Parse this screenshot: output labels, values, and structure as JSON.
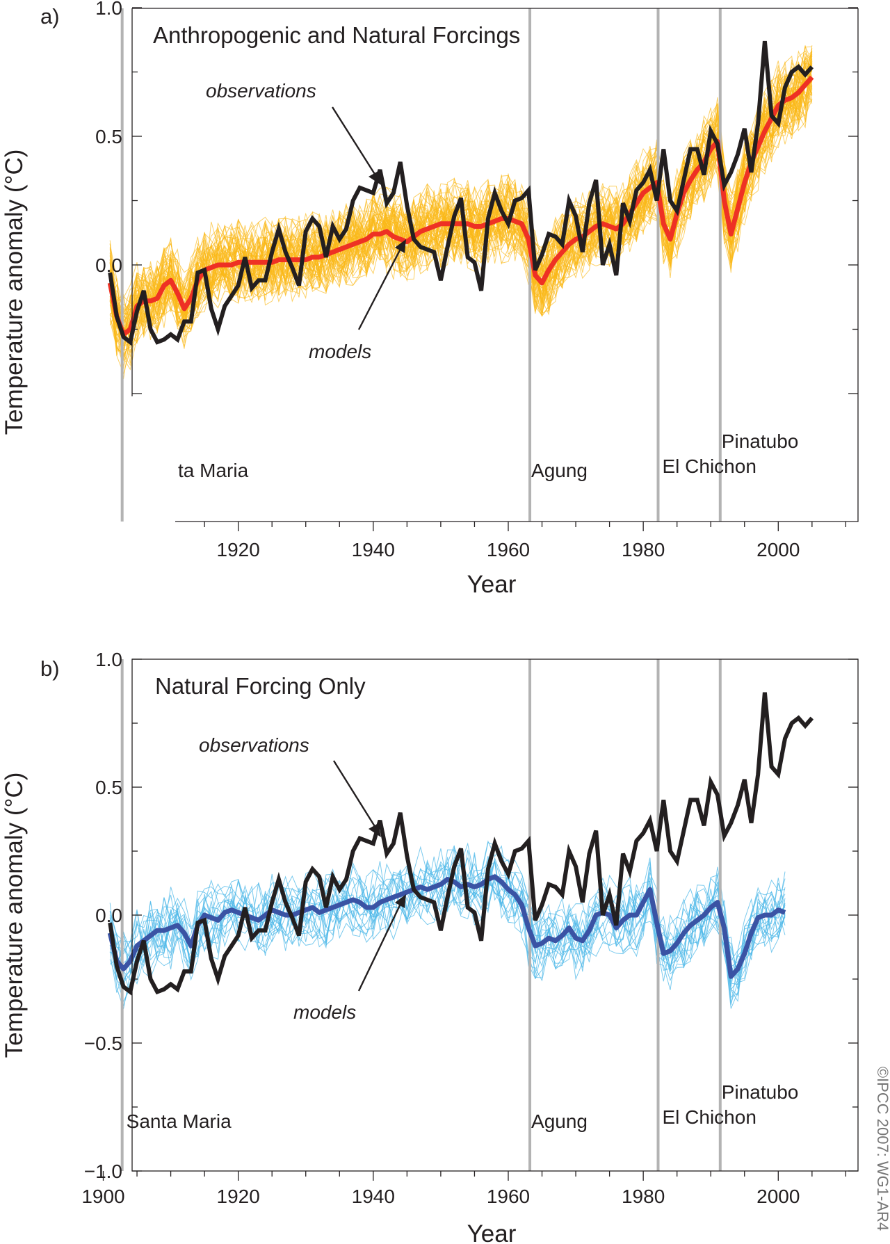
{
  "copyright": "©IPCC 2007: WG1-AR4",
  "colors": {
    "observations": "#231f20",
    "ensemble_a": "#fbb917",
    "mean_a": "#ee3124",
    "ensemble_b": "#4db8e8",
    "mean_b": "#3a53a4",
    "volcano_line": "#b3b3b3"
  },
  "chart_data": [
    {
      "type": "line",
      "panel_letter": "a)",
      "title": "Anthropogenic and Natural Forcings",
      "xlabel": "Year",
      "ylabel": "Temperature anomaly (°C)",
      "xlim": [
        1900,
        2010
      ],
      "ylim": [
        -1.0,
        1.0
      ],
      "x_ticks": [
        1920,
        1940,
        1960,
        1980,
        2000
      ],
      "y_ticks": [
        0.0,
        0.5,
        1.0
      ],
      "grid": false,
      "annotations": {
        "observations": "observations",
        "models": "models"
      },
      "volcanoes": [
        {
          "name": "Santa Maria",
          "year": 1902.8
        },
        {
          "name": "Agung",
          "year": 1963.2
        },
        {
          "name": "El Chichon",
          "year": 1982.2
        },
        {
          "name": "Pinatubo",
          "year": 1991.4
        }
      ],
      "ensemble_count": 58,
      "series": [
        {
          "name": "observations",
          "role": "observations",
          "x_start": 1901,
          "values": [
            -0.03,
            -0.2,
            -0.28,
            -0.3,
            -0.18,
            -0.1,
            -0.25,
            -0.3,
            -0.29,
            -0.27,
            -0.29,
            -0.22,
            -0.22,
            -0.03,
            -0.02,
            -0.17,
            -0.25,
            -0.16,
            -0.12,
            -0.08,
            0.03,
            -0.09,
            -0.06,
            -0.06,
            0.05,
            0.14,
            0.05,
            -0.01,
            -0.08,
            0.13,
            0.18,
            0.15,
            0.03,
            0.15,
            0.1,
            0.14,
            0.25,
            0.3,
            0.29,
            0.28,
            0.37,
            0.24,
            0.28,
            0.4,
            0.23,
            0.1,
            0.07,
            0.06,
            0.05,
            -0.06,
            0.07,
            0.19,
            0.26,
            0.03,
            0.01,
            -0.1,
            0.18,
            0.28,
            0.21,
            0.16,
            0.25,
            0.26,
            0.29,
            -0.02,
            0.04,
            0.12,
            0.11,
            0.08,
            0.25,
            0.19,
            0.05,
            0.24,
            0.33,
            0.0,
            0.08,
            -0.04,
            0.24,
            0.17,
            0.29,
            0.32,
            0.37,
            0.25,
            0.45,
            0.25,
            0.21,
            0.33,
            0.45,
            0.45,
            0.35,
            0.52,
            0.47,
            0.31,
            0.36,
            0.43,
            0.53,
            0.36,
            0.55,
            0.87,
            0.58,
            0.55,
            0.69,
            0.75,
            0.77,
            0.74,
            0.77
          ]
        },
        {
          "name": "models",
          "role": "multi-model mean",
          "x_start": 1901,
          "values": [
            -0.07,
            -0.2,
            -0.27,
            -0.25,
            -0.16,
            -0.14,
            -0.14,
            -0.13,
            -0.08,
            -0.06,
            -0.11,
            -0.17,
            -0.13,
            -0.06,
            -0.02,
            -0.01,
            -0.0,
            0.0,
            0.0,
            0.01,
            0.01,
            0.01,
            0.01,
            0.01,
            0.01,
            0.02,
            0.02,
            0.02,
            0.02,
            0.02,
            0.03,
            0.03,
            0.04,
            0.05,
            0.06,
            0.07,
            0.08,
            0.09,
            0.1,
            0.12,
            0.12,
            0.13,
            0.11,
            0.1,
            0.09,
            0.11,
            0.13,
            0.14,
            0.15,
            0.16,
            0.16,
            0.16,
            0.16,
            0.16,
            0.15,
            0.15,
            0.16,
            0.17,
            0.18,
            0.18,
            0.17,
            0.16,
            0.1,
            -0.04,
            -0.07,
            -0.02,
            0.02,
            0.05,
            0.08,
            0.1,
            0.11,
            0.13,
            0.15,
            0.16,
            0.15,
            0.14,
            0.16,
            0.2,
            0.24,
            0.28,
            0.3,
            0.32,
            0.16,
            0.1,
            0.2,
            0.28,
            0.33,
            0.37,
            0.4,
            0.45,
            0.48,
            0.25,
            0.12,
            0.22,
            0.32,
            0.4,
            0.46,
            0.52,
            0.57,
            0.62,
            0.64,
            0.65,
            0.67,
            0.7,
            0.73
          ]
        }
      ]
    },
    {
      "type": "line",
      "panel_letter": "b)",
      "title": "Natural Forcing Only",
      "xlabel": "Year",
      "ylabel": "Temperature anomaly (°C)",
      "xlim": [
        1900,
        2010
      ],
      "ylim": [
        -1.0,
        1.0
      ],
      "x_ticks": [
        1900,
        1920,
        1940,
        1960,
        1980,
        2000
      ],
      "y_ticks": [
        -1.0,
        -0.5,
        0.0,
        0.5,
        1.0
      ],
      "grid": false,
      "annotations": {
        "observations": "observations",
        "models": "models"
      },
      "volcanoes": [
        {
          "name": "Santa Maria",
          "year": 1902.8
        },
        {
          "name": "Agung",
          "year": 1963.2
        },
        {
          "name": "El Chichon",
          "year": 1982.2
        },
        {
          "name": "Pinatubo",
          "year": 1991.4
        }
      ],
      "ensemble_count": 19,
      "series": [
        {
          "name": "observations",
          "role": "observations",
          "x_start": 1901,
          "values": [
            -0.03,
            -0.2,
            -0.28,
            -0.3,
            -0.18,
            -0.1,
            -0.25,
            -0.3,
            -0.29,
            -0.27,
            -0.29,
            -0.22,
            -0.22,
            -0.03,
            -0.02,
            -0.17,
            -0.25,
            -0.16,
            -0.12,
            -0.08,
            0.03,
            -0.09,
            -0.06,
            -0.06,
            0.05,
            0.14,
            0.05,
            -0.01,
            -0.08,
            0.13,
            0.18,
            0.15,
            0.03,
            0.15,
            0.1,
            0.14,
            0.25,
            0.3,
            0.29,
            0.28,
            0.37,
            0.24,
            0.28,
            0.4,
            0.23,
            0.1,
            0.07,
            0.06,
            0.05,
            -0.06,
            0.07,
            0.19,
            0.26,
            0.03,
            0.01,
            -0.1,
            0.18,
            0.28,
            0.21,
            0.16,
            0.25,
            0.26,
            0.29,
            -0.02,
            0.04,
            0.12,
            0.11,
            0.08,
            0.25,
            0.19,
            0.05,
            0.24,
            0.33,
            0.0,
            0.08,
            -0.04,
            0.24,
            0.17,
            0.29,
            0.32,
            0.37,
            0.25,
            0.45,
            0.25,
            0.21,
            0.33,
            0.45,
            0.45,
            0.35,
            0.52,
            0.47,
            0.31,
            0.36,
            0.43,
            0.53,
            0.36,
            0.55,
            0.87,
            0.58,
            0.55,
            0.69,
            0.75,
            0.77,
            0.74,
            0.77
          ]
        },
        {
          "name": "models",
          "role": "multi-model mean",
          "x_start": 1901,
          "values": [
            -0.07,
            -0.18,
            -0.21,
            -0.18,
            -0.12,
            -0.1,
            -0.08,
            -0.06,
            -0.06,
            -0.05,
            -0.04,
            -0.07,
            -0.12,
            -0.04,
            -0.0,
            -0.01,
            -0.02,
            0.01,
            0.02,
            0.01,
            0.0,
            -0.01,
            -0.02,
            -0.0,
            0.02,
            0.01,
            0.0,
            -0.0,
            0.01,
            0.02,
            0.03,
            0.01,
            0.02,
            0.03,
            0.04,
            0.05,
            0.06,
            0.05,
            0.03,
            0.03,
            0.05,
            0.06,
            0.07,
            0.08,
            0.09,
            0.1,
            0.11,
            0.1,
            0.11,
            0.12,
            0.14,
            0.13,
            0.11,
            0.12,
            0.11,
            0.12,
            0.14,
            0.15,
            0.13,
            0.1,
            0.08,
            0.04,
            -0.05,
            -0.12,
            -0.11,
            -0.09,
            -0.1,
            -0.08,
            -0.05,
            -0.09,
            -0.1,
            -0.06,
            0.0,
            0.01,
            0.0,
            -0.05,
            -0.02,
            0.0,
            0.0,
            0.05,
            0.1,
            -0.03,
            -0.15,
            -0.14,
            -0.11,
            -0.07,
            -0.04,
            -0.02,
            0.0,
            0.03,
            0.05,
            -0.05,
            -0.24,
            -0.21,
            -0.15,
            -0.07,
            -0.01,
            0.0,
            0.0,
            0.02,
            0.01
          ]
        }
      ]
    }
  ]
}
